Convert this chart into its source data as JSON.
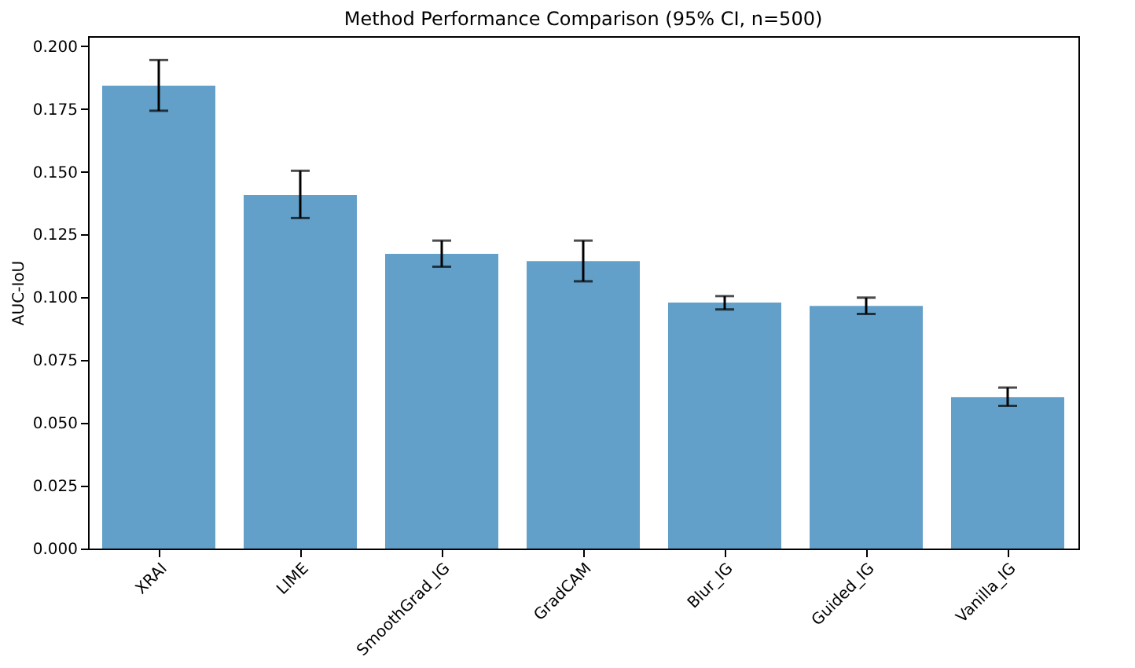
{
  "chart_data": {
    "type": "bar",
    "title": "Method Performance Comparison (95% CI, n=500)",
    "ylabel": "AUC-IoU",
    "categories": [
      "XRAI",
      "LIME",
      "SmoothGrad_IG",
      "GradCAM",
      "Blur_IG",
      "Guided_IG",
      "Vanilla_IG"
    ],
    "values": [
      0.1843,
      0.1408,
      0.1173,
      0.1144,
      0.0979,
      0.0966,
      0.0603
    ],
    "errors": [
      [
        0.1743,
        0.1945
      ],
      [
        0.1316,
        0.1504
      ],
      [
        0.1122,
        0.1226
      ],
      [
        0.1064,
        0.1226
      ],
      [
        0.0952,
        0.1005
      ],
      [
        0.0934,
        0.0999
      ],
      [
        0.0568,
        0.0641
      ]
    ],
    "color": "#62a0ca",
    "ylim": [
      0,
      0.204
    ],
    "yticks": [
      {
        "value": 0,
        "label": "0.000"
      },
      0.025,
      {
        "value": 0.05,
        "label": "0.050"
      },
      0.075,
      {
        "value": 0.1,
        "label": "0.100"
      },
      0.125,
      {
        "value": 0.15,
        "label": "0.150"
      },
      0.175,
      {
        "value": 0.2,
        "label": "0.200"
      }
    ],
    "grid": false
  }
}
